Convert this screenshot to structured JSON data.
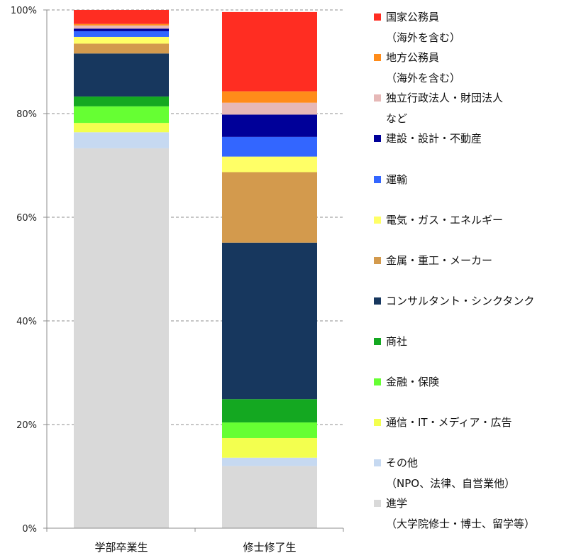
{
  "chart_data": {
    "type": "bar",
    "stacked": true,
    "percent": true,
    "grid": true,
    "legend_position": "right",
    "ylim": [
      0,
      100
    ],
    "y_ticks": [
      "0%",
      "20%",
      "40%",
      "60%",
      "80%",
      "100%"
    ],
    "categories": [
      "学部卒業生",
      "修士修了生"
    ],
    "series": [
      {
        "name": "進学",
        "sub": "（大学院修士・博士、留学等）",
        "color": "#d9d9d9",
        "values": [
          73.3,
          12.0
        ]
      },
      {
        "name": "その他",
        "sub": "（NPO、法律、自営業他）",
        "color": "#c6d9f1",
        "values": [
          3.1,
          1.6
        ]
      },
      {
        "name": "通信・IT・メディア・広告",
        "color": "#f3ff4f",
        "values": [
          1.8,
          3.8
        ]
      },
      {
        "name": "金融・保険",
        "color": "#66ff33",
        "values": [
          3.2,
          3.0
        ]
      },
      {
        "name": "商社",
        "color": "#14a821",
        "values": [
          1.9,
          4.5
        ]
      },
      {
        "name": "コンサルタント・シンクタンク",
        "color": "#17375e",
        "values": [
          8.3,
          30.2
        ]
      },
      {
        "name": "金属・重工・メーカー",
        "color": "#d39a4d",
        "values": [
          1.9,
          13.6
        ]
      },
      {
        "name": "電気・ガス・エネルギー",
        "color": "#ffff66",
        "values": [
          1.3,
          3.0
        ]
      },
      {
        "name": "運輸",
        "color": "#3366ff",
        "values": [
          1.1,
          3.8
        ]
      },
      {
        "name": "建設・設計・不動産",
        "color": "#000099",
        "values": [
          0.5,
          4.3
        ]
      },
      {
        "name": "独立行政法人・財団法人",
        "sub": "など",
        "color": "#e6b8b7",
        "values": [
          0.6,
          2.3
        ]
      },
      {
        "name": "地方公務員",
        "sub": "（海外を含む）",
        "color": "#ff8c1a",
        "values": [
          0.3,
          2.2
        ]
      },
      {
        "name": "国家公務員",
        "sub": "（海外を含む）",
        "color": "#ff2d22",
        "values": [
          2.7,
          15.3
        ]
      }
    ]
  }
}
